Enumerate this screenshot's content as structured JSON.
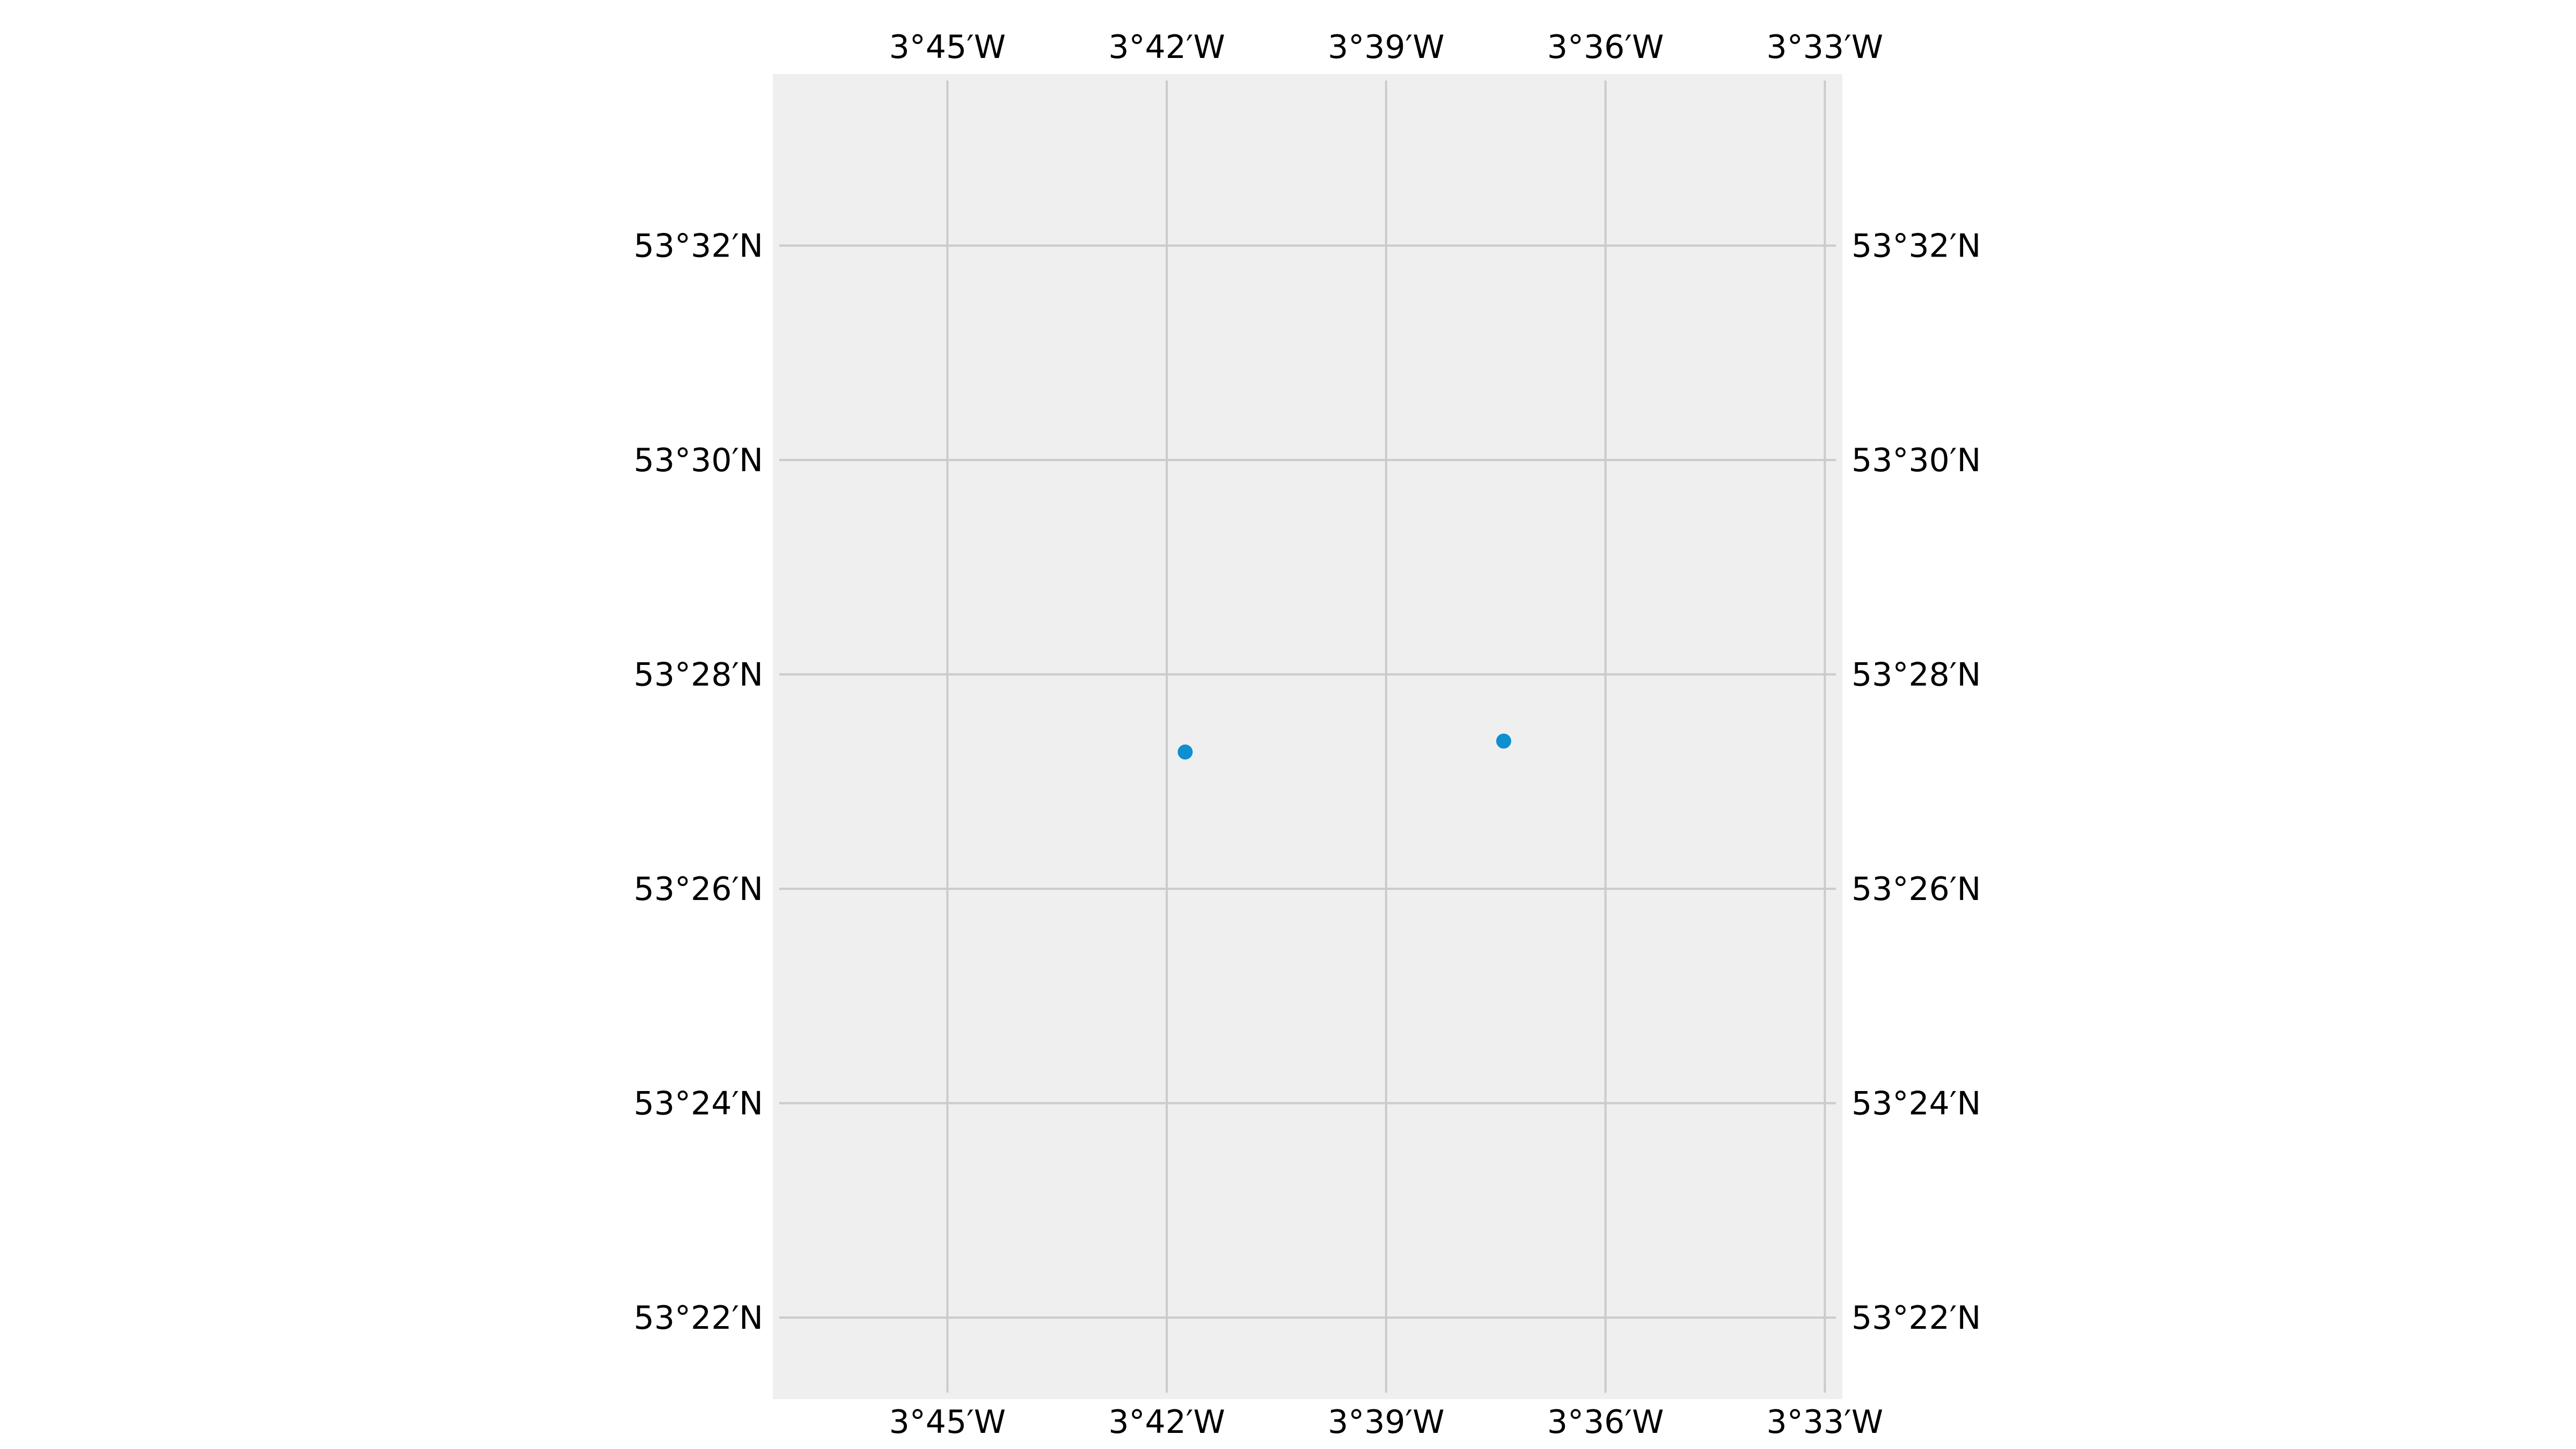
{
  "chart_data": {
    "type": "scatter",
    "title": "",
    "xlabel": "",
    "ylabel": "",
    "projection": "geographic",
    "grid": true,
    "background_color": "#efefef",
    "grid_color": "#cbcbcb",
    "point_color": "#0d8fd0",
    "xlim": [
      -3.7898,
      -3.546
    ],
    "ylim": [
      53.354,
      53.56
    ],
    "x_ticks": [
      {
        "value": -3.75,
        "label": "3°45′W"
      },
      {
        "value": -3.7,
        "label": "3°42′W"
      },
      {
        "value": -3.65,
        "label": "3°39′W"
      },
      {
        "value": -3.6,
        "label": "3°36′W"
      },
      {
        "value": -3.55,
        "label": "3°33′W"
      }
    ],
    "y_ticks": [
      {
        "value": 53.533333,
        "label": "53°32′N"
      },
      {
        "value": 53.5,
        "label": "53°30′N"
      },
      {
        "value": 53.466667,
        "label": "53°28′N"
      },
      {
        "value": 53.433333,
        "label": "53°26′N"
      },
      {
        "value": 53.4,
        "label": "53°24′N"
      },
      {
        "value": 53.366667,
        "label": "53°22′N"
      }
    ],
    "points": [
      {
        "x": -3.6958,
        "y": 53.4546
      },
      {
        "x": -3.6232,
        "y": 53.4563
      }
    ]
  }
}
